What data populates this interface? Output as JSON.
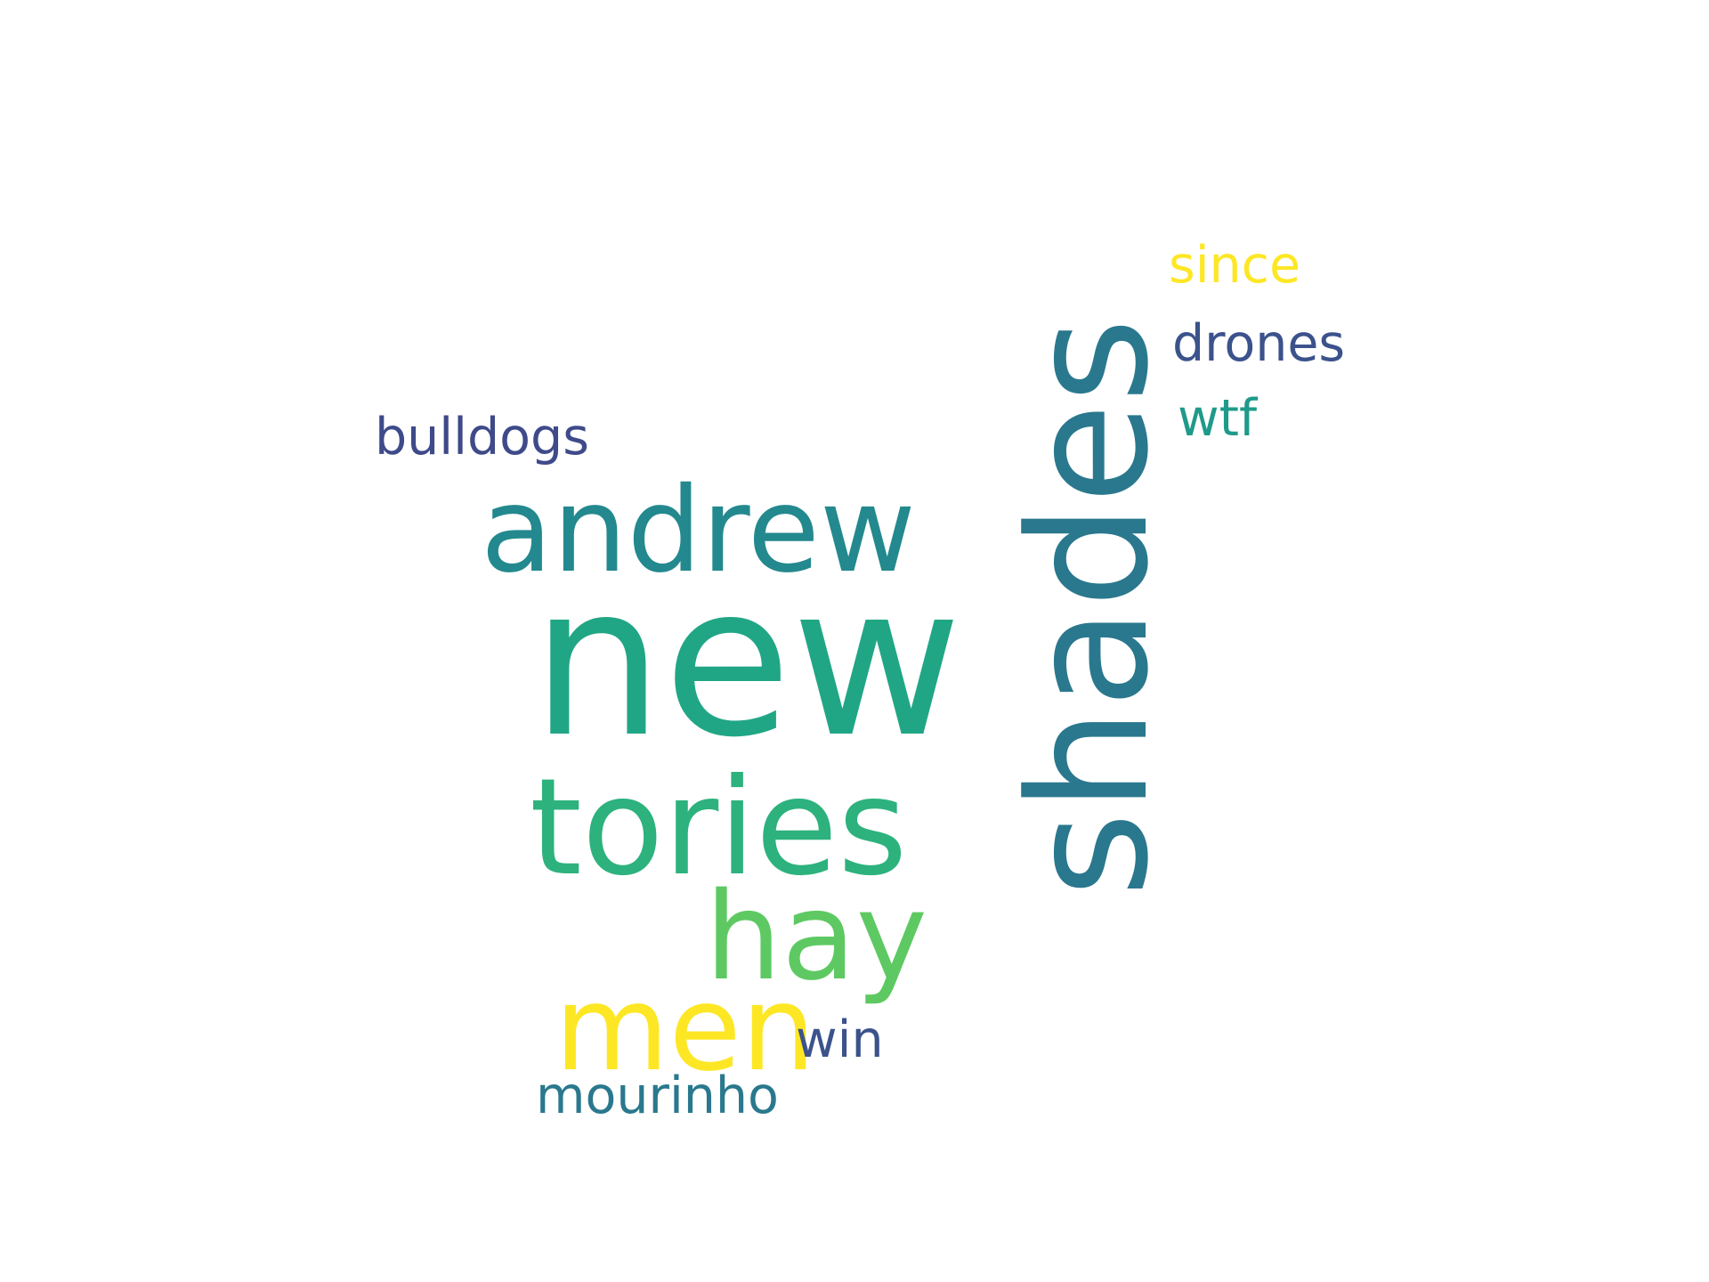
{
  "words": [
    {
      "text": "new",
      "color": "#21a685",
      "orientation": "horizontal"
    },
    {
      "text": "shades",
      "color": "#2a788e",
      "orientation": "vertical"
    },
    {
      "text": "tories",
      "color": "#2db27d",
      "orientation": "horizontal"
    },
    {
      "text": "andrew",
      "color": "#23898e",
      "orientation": "horizontal"
    },
    {
      "text": "hay",
      "color": "#5ec962",
      "orientation": "horizontal"
    },
    {
      "text": "men",
      "color": "#fde725",
      "orientation": "horizontal"
    },
    {
      "text": "since",
      "color": "#fde725",
      "orientation": "horizontal"
    },
    {
      "text": "drones",
      "color": "#3b528b",
      "orientation": "horizontal"
    },
    {
      "text": "wtf",
      "color": "#1f9a8a",
      "orientation": "horizontal"
    },
    {
      "text": "bulldogs",
      "color": "#3e4a89",
      "orientation": "horizontal"
    },
    {
      "text": "win",
      "color": "#3b528b",
      "orientation": "horizontal"
    },
    {
      "text": "mourinho",
      "color": "#2a788e",
      "orientation": "horizontal"
    }
  ]
}
